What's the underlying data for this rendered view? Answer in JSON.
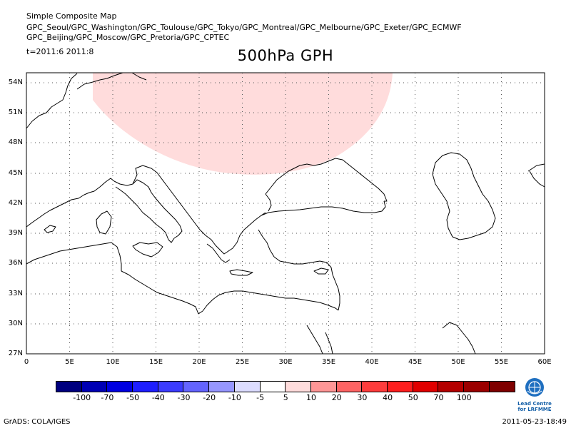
{
  "header": {
    "line1": "Simple Composite Map",
    "line2": "GPC_Seoul/GPC_Washington/GPC_Toulouse/GPC_Tokyo/GPC_Montreal/GPC_Melbourne/GPC_Exeter/GPC_ECMWF",
    "line3": "GPC_Beijing/GPC_Moscow/GPC_Pretoria/GPC_CPTEC",
    "time": "t=2011:6 2011:8"
  },
  "title": "500hPa GPH",
  "map": {
    "lat_labels": [
      "54N",
      "51N",
      "48N",
      "45N",
      "42N",
      "39N",
      "36N",
      "33N",
      "30N",
      "27N"
    ],
    "lon_labels": [
      "0",
      "5E",
      "10E",
      "15E",
      "20E",
      "25E",
      "30E",
      "35E",
      "40E",
      "45E",
      "50E",
      "55E",
      "60E"
    ],
    "positive_anomaly_color": "#ffdcdc"
  },
  "colorbar": {
    "colors": [
      "#00007f",
      "#0000b4",
      "#0000e1",
      "#1e1eff",
      "#3c3cff",
      "#6464ff",
      "#9696ff",
      "#dcdcff",
      "#ffffff",
      "#ffdcdc",
      "#ff9696",
      "#ff6464",
      "#ff3c3c",
      "#ff1e1e",
      "#e10000",
      "#b40000",
      "#9b0000",
      "#7f0000"
    ],
    "labels": [
      "-100",
      "-70",
      "-50",
      "-40",
      "-30",
      "-20",
      "-10",
      "-5",
      "5",
      "10",
      "20",
      "30",
      "40",
      "50",
      "70",
      "100"
    ]
  },
  "logo": {
    "line1": "Lead Centre",
    "line2": "for LRFMME"
  },
  "footer": {
    "left": "GrADS: COLA/IGES",
    "right": "2011-05-23-18:49"
  }
}
